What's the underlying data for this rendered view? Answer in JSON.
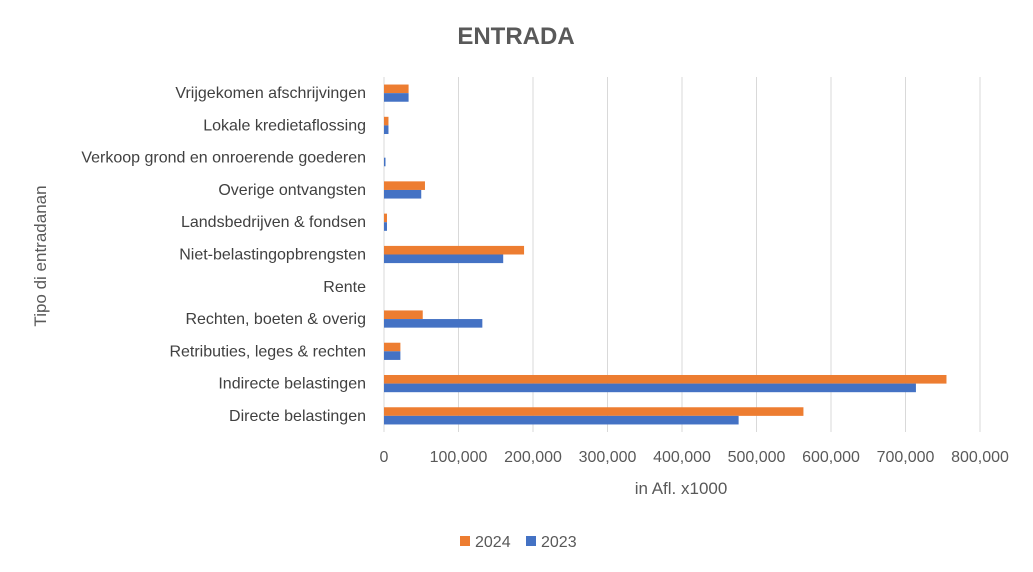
{
  "chart_data": {
    "type": "bar",
    "orientation": "horizontal",
    "title": "ENTRADA",
    "xlabel": "in Afl. x1000",
    "ylabel": "Tipo di entradanan",
    "xlim": [
      0,
      800000
    ],
    "xticks": [
      0,
      100000,
      200000,
      300000,
      400000,
      500000,
      600000,
      700000,
      800000
    ],
    "xtick_labels": [
      "0",
      "100,000",
      "200,000",
      "300,000",
      "400,000",
      "500,000",
      "600,000",
      "700,000",
      "800,000"
    ],
    "grid": true,
    "legend_position": "bottom",
    "categories": [
      "Vrijgekomen afschrijvingen",
      "Lokale kredietaflossing",
      "Verkoop grond en onroerende goederen",
      "Overige ontvangsten",
      "Landsbedrijven & fondsen",
      "Niet-belastingopbrengsten",
      "Rente",
      "Rechten, boeten & overig",
      "Retributies, leges & rechten",
      "Indirecte belastingen",
      "Directe belastingen"
    ],
    "series": [
      {
        "name": "2024",
        "color": "#ED7D31",
        "values": [
          33000,
          6000,
          0,
          55000,
          4000,
          188000,
          0,
          52000,
          22000,
          755000,
          563000
        ]
      },
      {
        "name": "2023",
        "color": "#4472C4",
        "values": [
          33000,
          6000,
          2000,
          50000,
          4000,
          160000,
          0,
          132000,
          22000,
          714000,
          476000
        ]
      }
    ]
  }
}
